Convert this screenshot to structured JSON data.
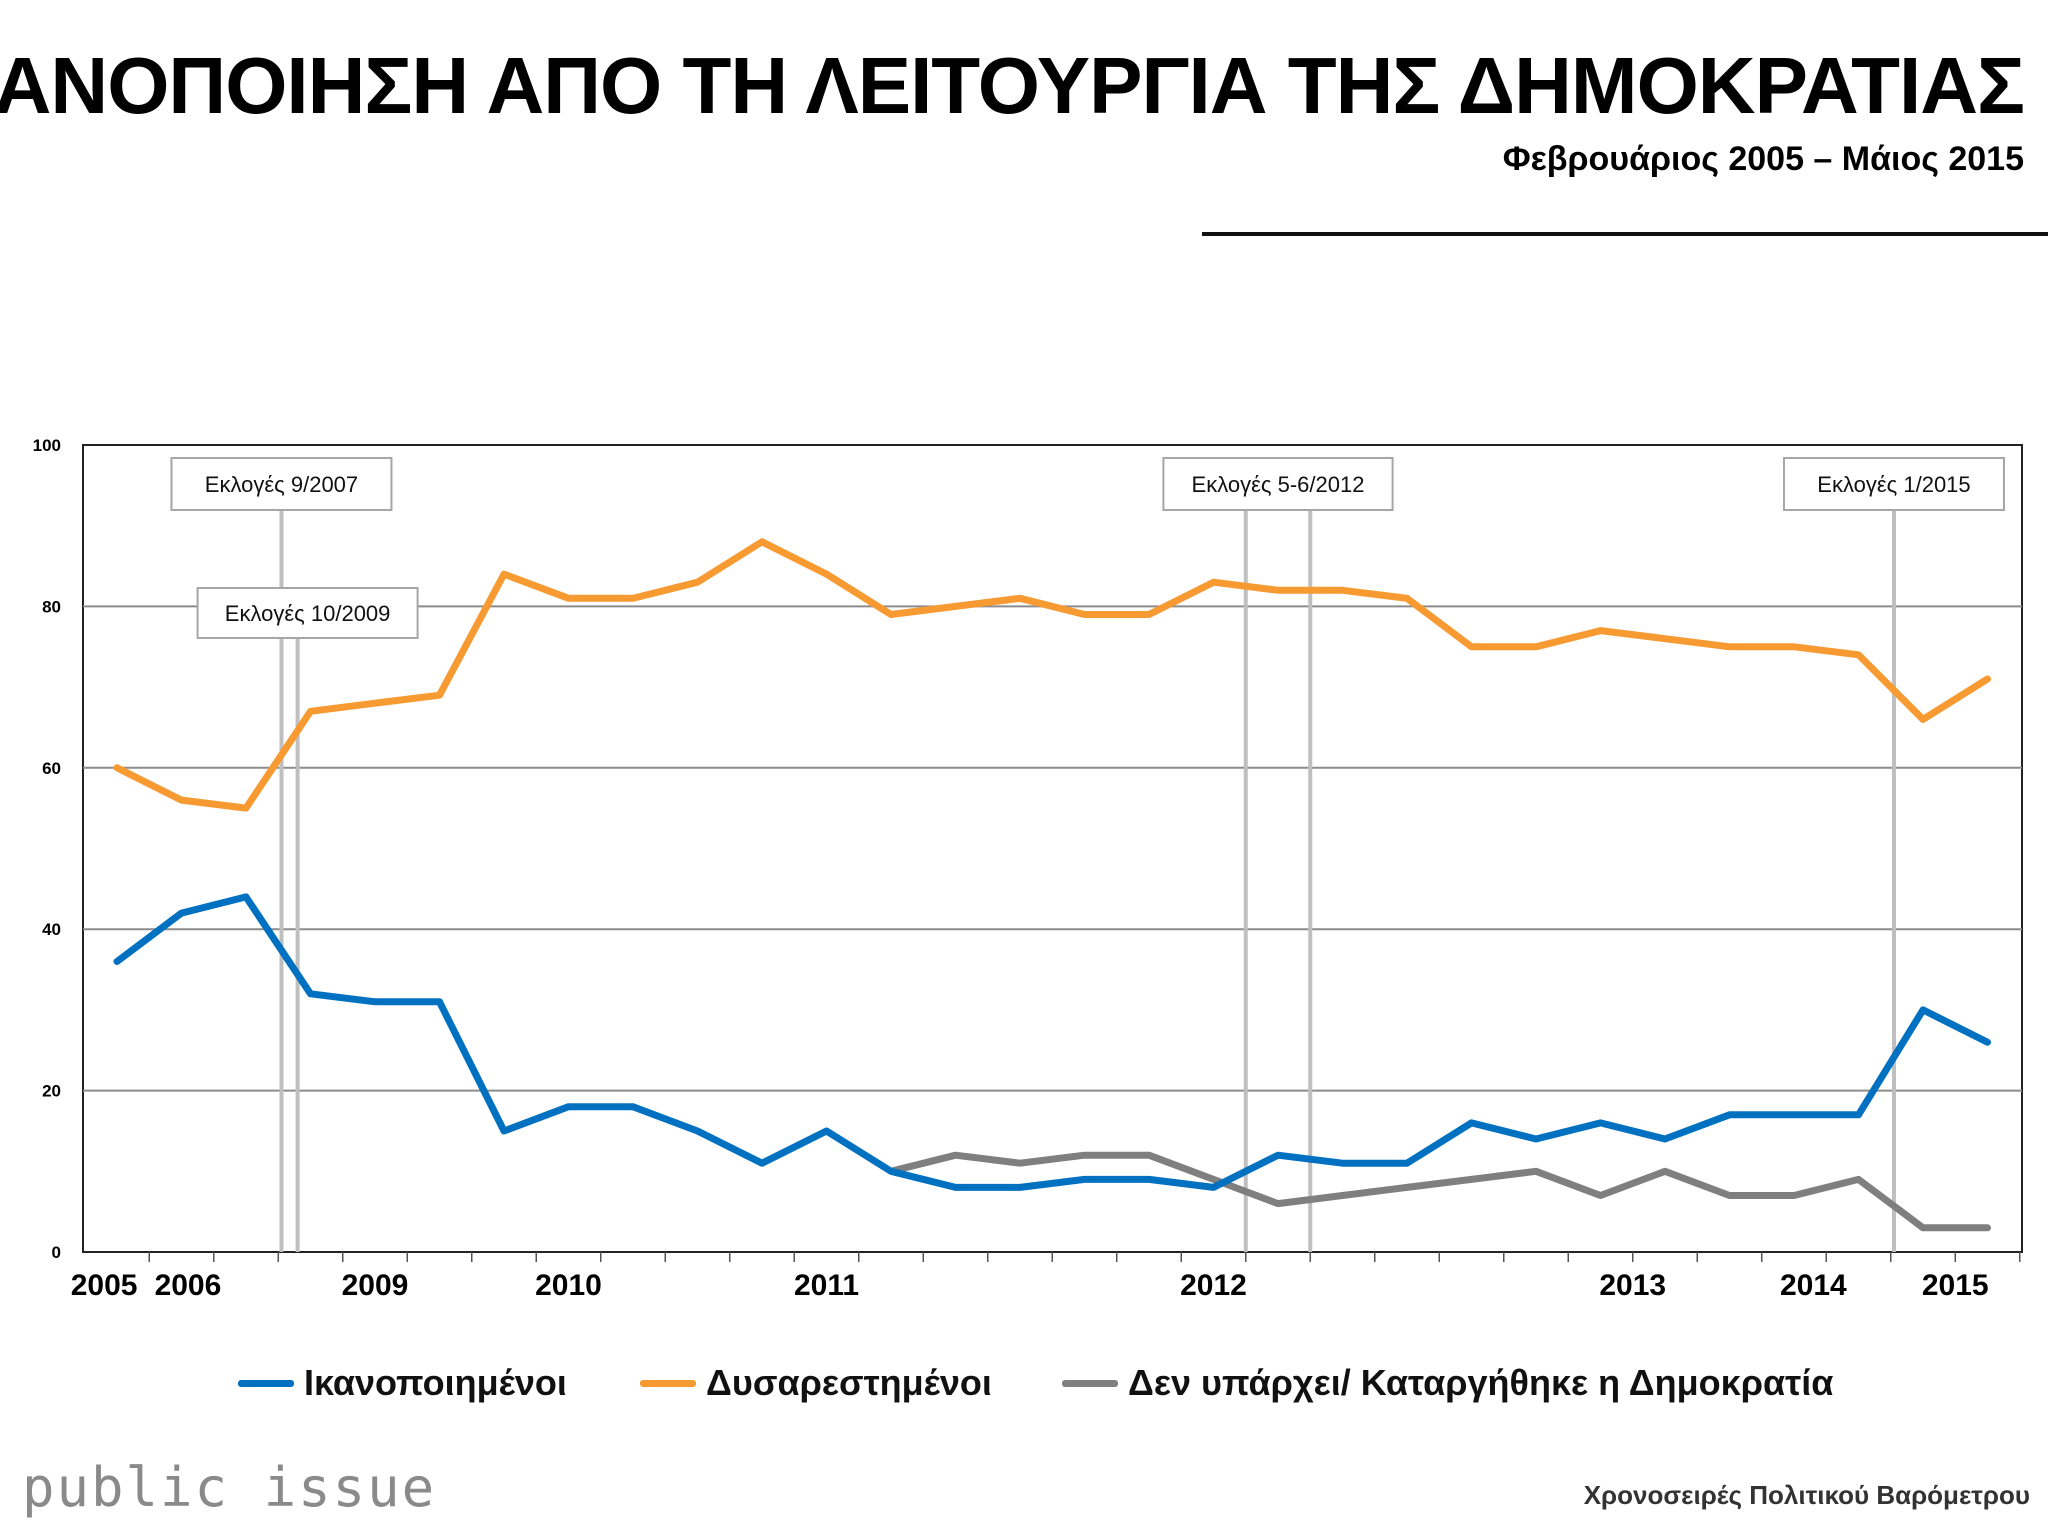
{
  "header": {
    "title": "ΙΚΑΝΟΠΟΙΗΣΗ ΑΠΟ ΤΗ ΛΕΙΤΟΥΡΓΙΑ ΤΗΣ ΔΗΜΟΚΡΑΤΙΑΣ",
    "subtitle": "Φεβρουάριος 2005 – Μάιος 2015"
  },
  "legend": {
    "items": [
      {
        "label": "Ικανοποιημένοι",
        "color": "#0070C0"
      },
      {
        "label": "Δυσαρεστημένοι",
        "color": "#F79A32"
      },
      {
        "label": "Δεν υπάρχει/ Καταργήθηκε η Δημοκρατία",
        "color": "#7F7F7F"
      }
    ]
  },
  "footer": {
    "brand": "public issue",
    "note": "Χρονοσειρές Πολιτικού Βαρόμετρου"
  },
  "chart_data": {
    "type": "line",
    "title": "ΙΚΑΝΟΠΟΙΗΣΗ ΑΠΟ ΤΗ ΛΕΙΤΟΥΡΓΙΑ ΤΗΣ ΔΗΜΟΚΡΑΤΙΑΣ",
    "ylim": [
      0,
      100
    ],
    "y_ticks": [
      0,
      20,
      40,
      60,
      80,
      100
    ],
    "grid": true,
    "n_points": 30,
    "x_year_labels": [
      {
        "label": "2005",
        "index": -0.2
      },
      {
        "label": "2006",
        "index": 1.1
      },
      {
        "label": "2009",
        "index": 4.0
      },
      {
        "label": "2010",
        "index": 7.0
      },
      {
        "label": "2011",
        "index": 11.0
      },
      {
        "label": "2012",
        "index": 17.0
      },
      {
        "label": "2013",
        "index": 23.5
      },
      {
        "label": "2014",
        "index": 26.3
      },
      {
        "label": "2015",
        "index": 28.5
      }
    ],
    "series": [
      {
        "name": "Ικανοποιημένοι",
        "color": "#0070C0",
        "start_index": 0,
        "values": [
          36,
          42,
          44,
          32,
          31,
          31,
          15,
          18,
          18,
          15,
          11,
          15,
          10,
          8,
          8,
          9,
          9,
          8,
          12,
          11,
          11,
          16,
          14,
          16,
          14,
          17,
          17,
          17,
          30,
          26
        ]
      },
      {
        "name": "Δυσαρεστημένοι",
        "color": "#F79A32",
        "start_index": 0,
        "values": [
          60,
          56,
          55,
          67,
          68,
          69,
          84,
          81,
          81,
          83,
          88,
          84,
          79,
          80,
          81,
          79,
          79,
          83,
          82,
          82,
          81,
          75,
          75,
          77,
          76,
          75,
          75,
          74,
          66,
          71
        ]
      },
      {
        "name": "Δεν υπάρχει/ Καταργήθηκε η Δημοκρατία",
        "color": "#7F7F7F",
        "start_index": 12,
        "values": [
          10,
          12,
          11,
          12,
          12,
          9,
          6,
          7,
          8,
          9,
          10,
          7,
          10,
          7,
          7,
          9,
          3,
          3
        ]
      }
    ],
    "annotations": [
      {
        "label": "Εκλογές 9/2007",
        "lines_at": [
          2.55
        ],
        "box_row": "top"
      },
      {
        "label": "Εκλογές 10/2009",
        "lines_at": [
          2.8
        ],
        "box_row": "second"
      },
      {
        "label": "Εκλογές 5-6/2012",
        "lines_at": [
          17.5,
          18.5
        ],
        "box_row": "top"
      },
      {
        "label": "Εκλογές 1/2015",
        "lines_at": [
          27.55
        ],
        "box_row": "top"
      }
    ]
  }
}
